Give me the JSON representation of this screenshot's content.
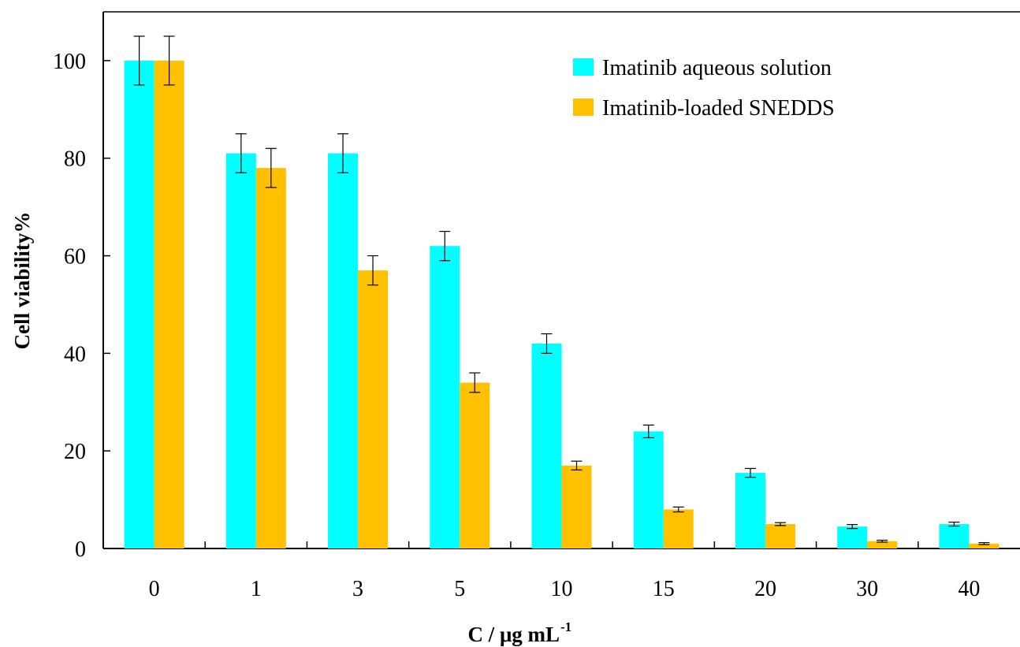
{
  "chart_data": {
    "type": "bar",
    "xlabel": "C / μg mL",
    "xlabel_superscript": "-1",
    "ylabel": "Cell viability%",
    "ylim": [
      0,
      110
    ],
    "yticks": [
      0,
      20,
      40,
      60,
      80,
      100
    ],
    "categories": [
      "0",
      "1",
      "3",
      "5",
      "10",
      "15",
      "20",
      "30",
      "40"
    ],
    "series": [
      {
        "name": "Imatinib aqueous solution",
        "color": "#00FFFF",
        "values": [
          100,
          81,
          81,
          62,
          42,
          24,
          15.5,
          4.5,
          5
        ],
        "errors": [
          5,
          4,
          4,
          3,
          2,
          1.3,
          0.9,
          0.4,
          0.4
        ]
      },
      {
        "name": "Imatinib-loaded SNEDDS",
        "color": "#FFC000",
        "values": [
          100,
          78,
          57,
          34,
          17,
          8,
          5,
          1.5,
          1
        ],
        "errors": [
          5,
          4,
          3,
          2,
          0.9,
          0.5,
          0.3,
          0.2,
          0.2
        ]
      }
    ],
    "legend_position": "top-right",
    "grid": false
  }
}
